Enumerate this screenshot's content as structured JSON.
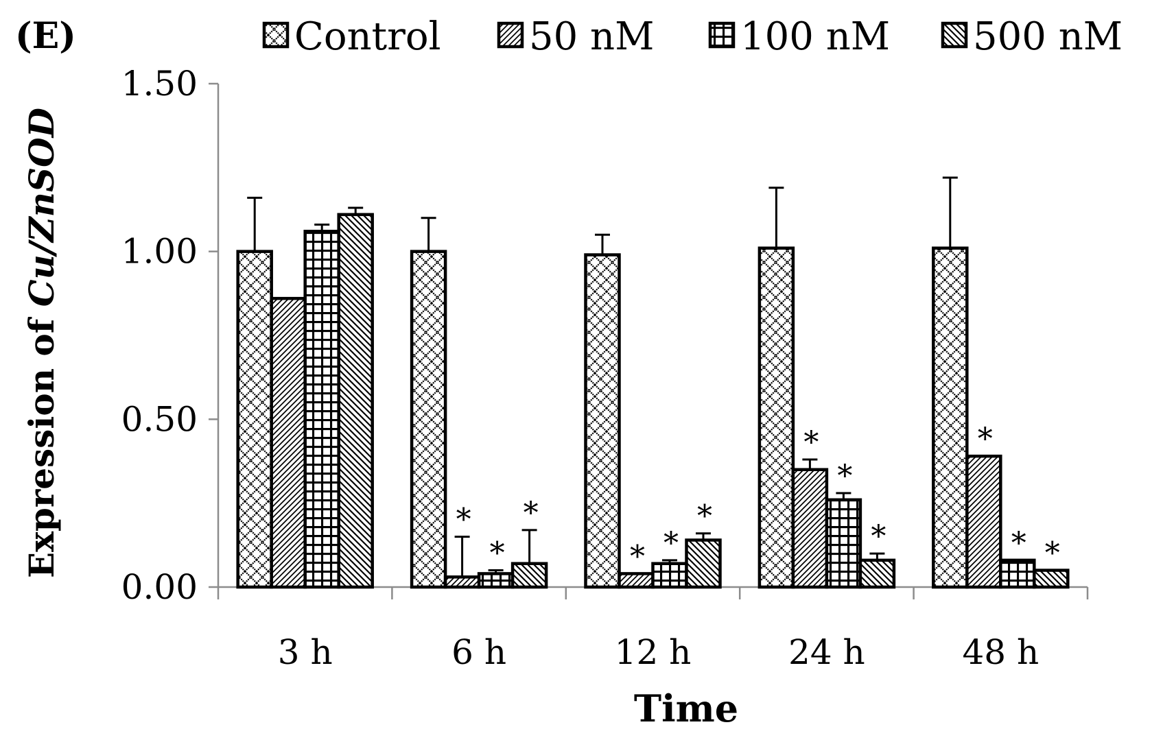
{
  "chart_data": {
    "type": "bar",
    "panel_label": "(E)",
    "title": "",
    "xlabel": "Time",
    "ylabel_prefix": "Expression of ",
    "ylabel_gene": "Cu/ZnSOD",
    "ylim": [
      0,
      1.5
    ],
    "yticks": [
      "0.00",
      "0.50",
      "1.00",
      "1.50"
    ],
    "ytick_values": [
      0,
      0.5,
      1.0,
      1.5
    ],
    "categories": [
      "3 h",
      "6 h",
      "12 h",
      "24 h",
      "48 h"
    ],
    "legend_position": "top",
    "series": [
      {
        "name": "Control",
        "pattern": "cross-diagonal",
        "values": [
          1.0,
          1.0,
          0.99,
          1.01,
          1.01
        ],
        "errors": [
          0.16,
          0.1,
          0.06,
          0.18,
          0.21
        ],
        "significant": [
          false,
          false,
          false,
          false,
          false
        ]
      },
      {
        "name": "50 nM",
        "pattern": "diagonal",
        "values": [
          0.86,
          0.03,
          0.04,
          0.35,
          0.39
        ],
        "errors": [
          0.0,
          0.12,
          0.0,
          0.03,
          0.0
        ],
        "significant": [
          false,
          true,
          true,
          true,
          true
        ]
      },
      {
        "name": "100 nM",
        "pattern": "grid",
        "values": [
          1.06,
          0.04,
          0.07,
          0.26,
          0.08
        ],
        "errors": [
          0.02,
          0.01,
          0.01,
          0.02,
          0.0
        ],
        "significant": [
          false,
          true,
          true,
          true,
          true
        ]
      },
      {
        "name": "500 nM",
        "pattern": "anti-diagonal",
        "values": [
          1.11,
          0.07,
          0.14,
          0.08,
          0.05
        ],
        "errors": [
          0.02,
          0.1,
          0.02,
          0.02,
          0.0
        ],
        "significant": [
          false,
          true,
          true,
          true,
          true
        ]
      }
    ],
    "significance_marker": "*"
  },
  "colors": {
    "stroke": "#000000",
    "axis": "#8c8c8c",
    "fill": "#ffffff"
  }
}
